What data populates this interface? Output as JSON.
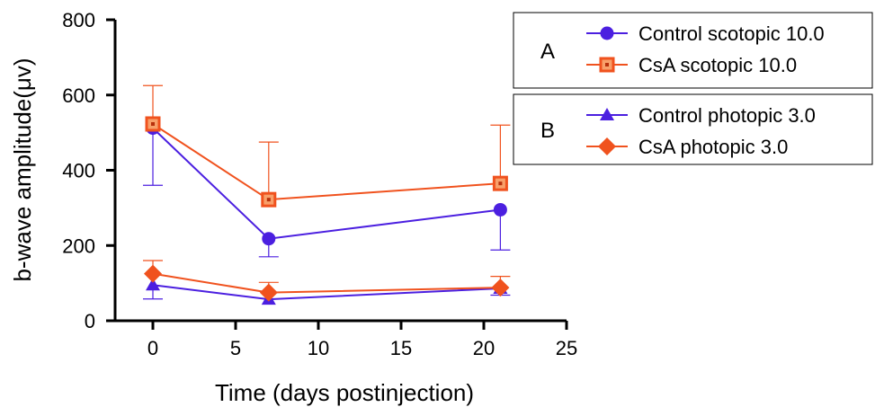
{
  "chart_data": {
    "type": "line",
    "xlabel": "Time (days postinjection)",
    "ylabel": "b-wave amplitude(μv)",
    "xlim": [
      0,
      25
    ],
    "ylim": [
      0,
      800
    ],
    "xticks": [
      "0",
      "5",
      "10",
      "15",
      "20",
      "25"
    ],
    "yticks": [
      "0",
      "200",
      "400",
      "600",
      "800"
    ],
    "grid": false,
    "legend_position": "top-right",
    "legend_groups": [
      {
        "label": "A",
        "series": [
          0,
          1
        ]
      },
      {
        "label": "B",
        "series": [
          2,
          3
        ]
      }
    ],
    "series": [
      {
        "name": "Control scotopic 10.0",
        "marker": "circle",
        "color": "#4B1FE0",
        "x": [
          0,
          7,
          21
        ],
        "y": [
          512,
          218,
          295
        ],
        "err_low": [
          360,
          170,
          188
        ],
        "err_high": [
          512,
          218,
          295
        ]
      },
      {
        "name": "CsA scotopic 10.0",
        "marker": "square",
        "color": "#F0521E",
        "x": [
          0,
          7,
          21
        ],
        "y": [
          523,
          322,
          365
        ],
        "err_low": [
          523,
          322,
          365
        ],
        "err_high": [
          625,
          475,
          520
        ]
      },
      {
        "name": "Control photopic 3.0",
        "marker": "triangle",
        "color": "#4B1FE0",
        "x": [
          0,
          7,
          21
        ],
        "y": [
          95,
          57,
          86
        ],
        "err_low": [
          58,
          57,
          68
        ],
        "err_high": [
          95,
          57,
          86
        ]
      },
      {
        "name": "CsA photopic 3.0",
        "marker": "diamond",
        "color": "#F0521E",
        "x": [
          0,
          7,
          21
        ],
        "y": [
          125,
          75,
          88
        ],
        "err_low": [
          125,
          75,
          88
        ],
        "err_high": [
          160,
          102,
          118
        ]
      }
    ]
  }
}
